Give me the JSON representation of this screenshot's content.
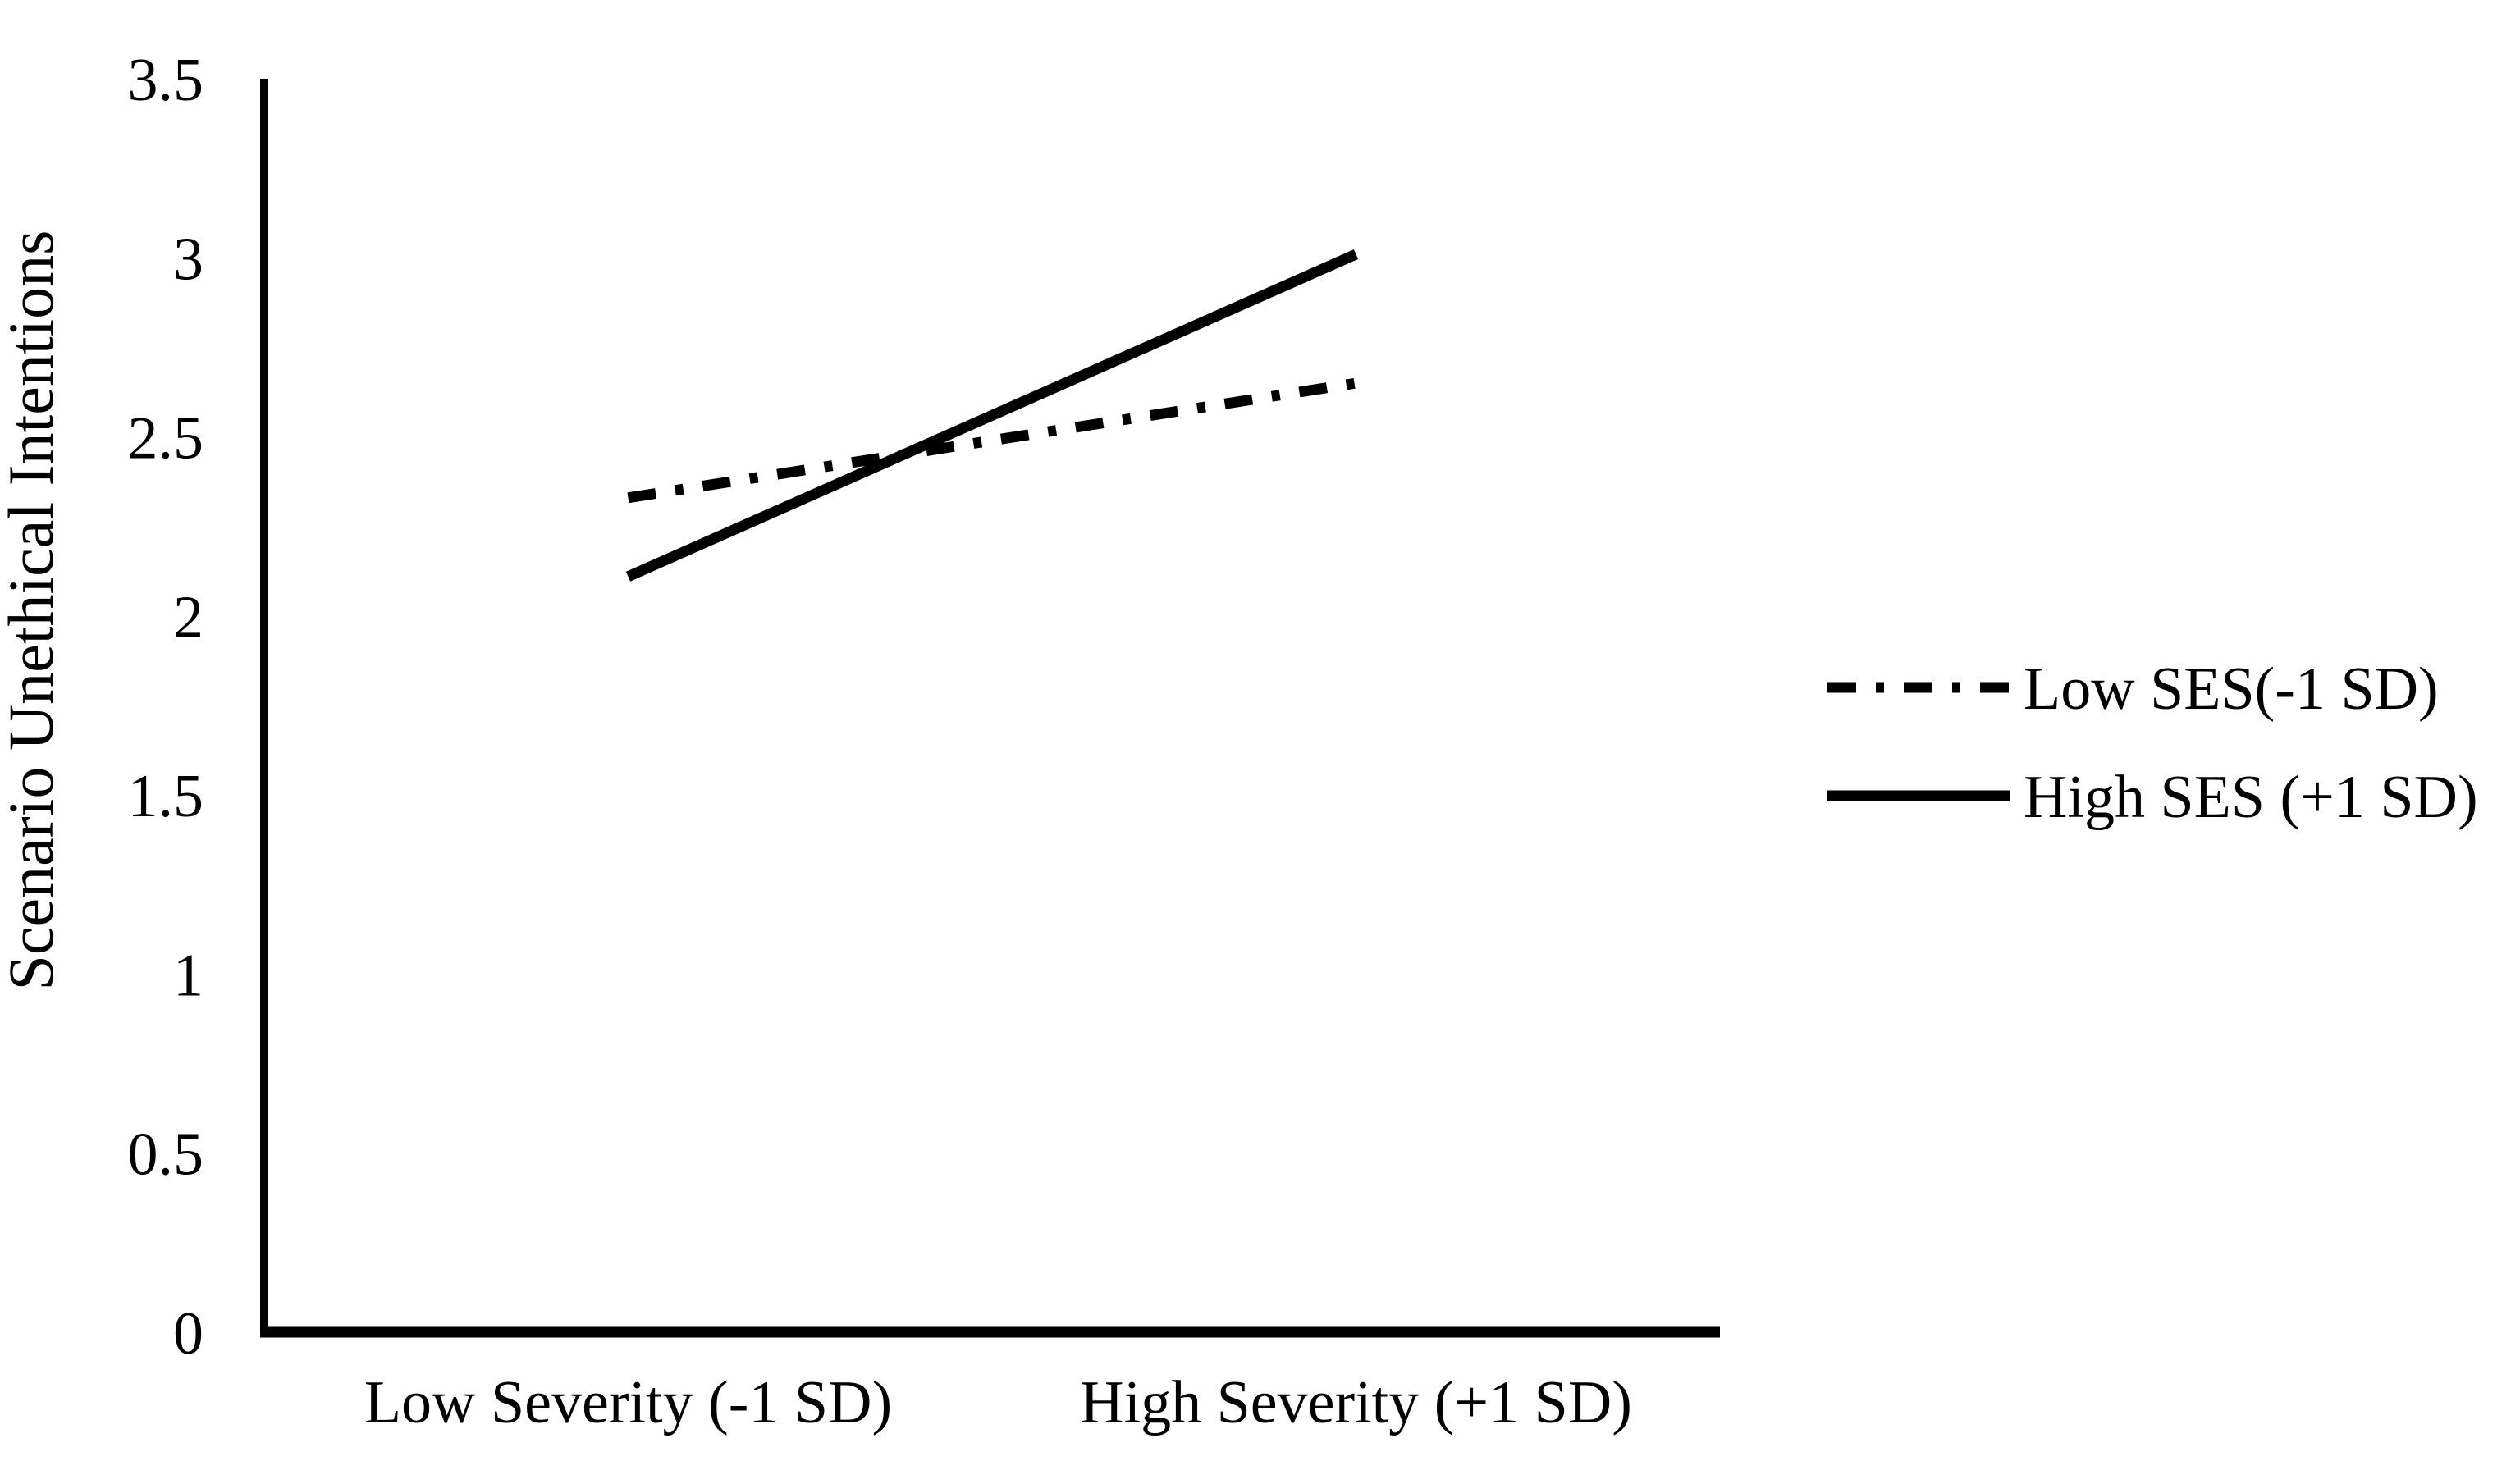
{
  "chart_data": {
    "type": "line",
    "title": "",
    "ylabel": "Scenario Unethical Intentions",
    "xlabel": "",
    "ylim": [
      0,
      3.5
    ],
    "ytick_step": 0.5,
    "ytick_labels": [
      "0",
      "0.5",
      "1",
      "1.5",
      "2",
      "2.5",
      "3",
      "3.5"
    ],
    "categories": [
      "Low Severity (-1 SD)",
      "High Severity (+1 SD)"
    ],
    "series": [
      {
        "name": "Low SES(-1 SD)",
        "values": [
          2.33,
          2.65
        ],
        "line_style": "dash-dot"
      },
      {
        "name": "High SES (+1 SD)",
        "values": [
          2.11,
          3.01
        ],
        "line_style": "solid"
      }
    ],
    "grid": false,
    "legend_position": "right",
    "line_color": "#000000",
    "axis_color": "#000000",
    "background_color": "#ffffff"
  }
}
